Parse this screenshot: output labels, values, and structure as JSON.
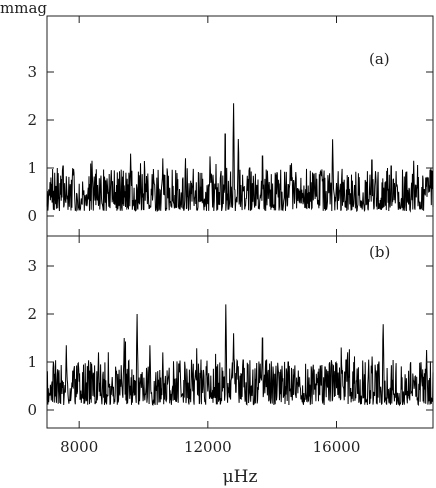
{
  "chart_data": [
    {
      "type": "line",
      "panel_label": "(a)",
      "ylabel": "mmag",
      "xlabel": "",
      "xlim": [
        7000,
        19000
      ],
      "ylim": [
        0,
        4
      ],
      "xticks": [
        8000,
        12000,
        16000
      ],
      "yticks": [
        0,
        1,
        2,
        3
      ],
      "grid": false,
      "noise_floor_mean": 0.35,
      "noise_spread": 0.45,
      "peaks": [
        {
          "x": 7500,
          "y": 1.25
        },
        {
          "x": 8400,
          "y": 1.15
        },
        {
          "x": 9600,
          "y": 1.3
        },
        {
          "x": 10600,
          "y": 1.2
        },
        {
          "x": 11300,
          "y": 1.1
        },
        {
          "x": 12540,
          "y": 2.05
        },
        {
          "x": 12800,
          "y": 2.35
        },
        {
          "x": 12950,
          "y": 1.75
        },
        {
          "x": 13300,
          "y": 1.2
        },
        {
          "x": 13700,
          "y": 1.5
        },
        {
          "x": 14600,
          "y": 1.1
        },
        {
          "x": 15300,
          "y": 1.05
        },
        {
          "x": 15880,
          "y": 1.6
        },
        {
          "x": 17100,
          "y": 1.4
        },
        {
          "x": 17700,
          "y": 1.25
        },
        {
          "x": 18400,
          "y": 1.15
        }
      ]
    },
    {
      "type": "line",
      "panel_label": "(b)",
      "ylabel": "",
      "xlabel": "μHz",
      "xlim": [
        7000,
        19000
      ],
      "ylim": [
        0,
        4
      ],
      "xticks": [
        8000,
        12000,
        16000
      ],
      "yticks": [
        0,
        1,
        2,
        3
      ],
      "grid": false,
      "noise_floor_mean": 0.35,
      "noise_spread": 0.5,
      "peaks": [
        {
          "x": 7600,
          "y": 1.35
        },
        {
          "x": 8600,
          "y": 1.2
        },
        {
          "x": 9400,
          "y": 1.5
        },
        {
          "x": 9800,
          "y": 2.0
        },
        {
          "x": 10200,
          "y": 1.35
        },
        {
          "x": 10600,
          "y": 1.2
        },
        {
          "x": 11100,
          "y": 1.15
        },
        {
          "x": 12560,
          "y": 2.2
        },
        {
          "x": 12800,
          "y": 1.6
        },
        {
          "x": 13100,
          "y": 1.25
        },
        {
          "x": 13700,
          "y": 1.8
        },
        {
          "x": 14500,
          "y": 1.2
        },
        {
          "x": 15500,
          "y": 1.1
        },
        {
          "x": 16300,
          "y": 1.25
        },
        {
          "x": 17000,
          "y": 1.05
        },
        {
          "x": 17450,
          "y": 1.95
        },
        {
          "x": 18300,
          "y": 1.15
        },
        {
          "x": 18800,
          "y": 1.25
        }
      ]
    }
  ]
}
